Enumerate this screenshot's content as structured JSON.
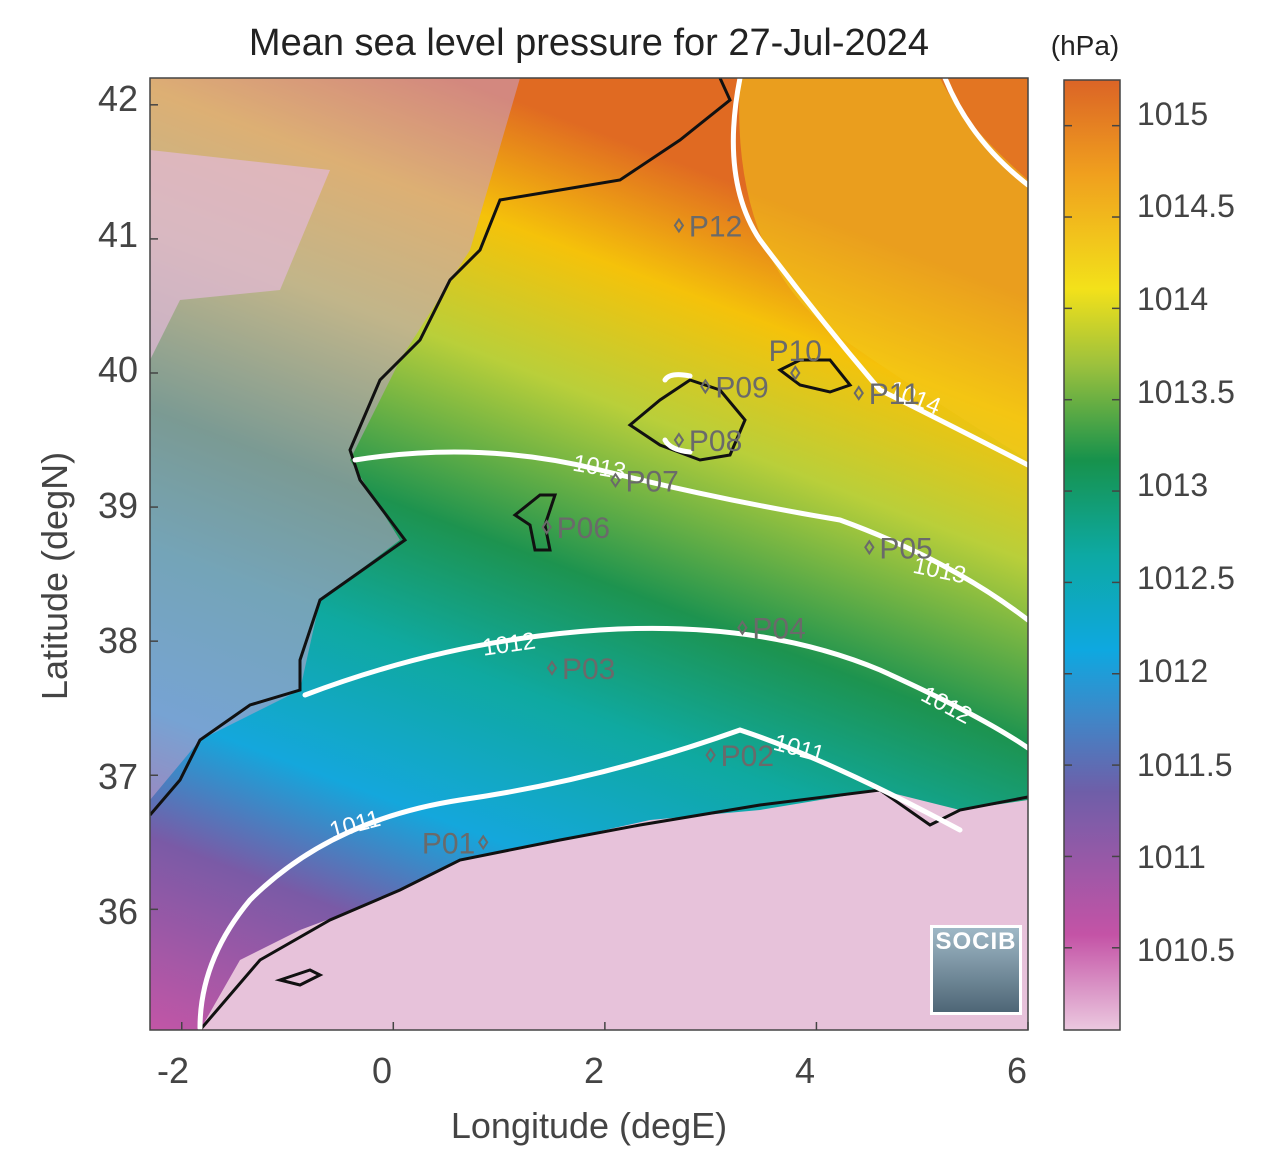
{
  "title": "Mean sea level pressure for 27-Jul-2024",
  "units": "(hPa)",
  "axes": {
    "xlabel": "Longitude (degE)",
    "ylabel": "Latitude (degN)",
    "xlim": [
      -2.3,
      6.0
    ],
    "ylim": [
      35.1,
      42.2
    ],
    "xticks": [
      "-2",
      "0",
      "2",
      "4",
      "6"
    ],
    "yticks": [
      "42",
      "41",
      "40",
      "39",
      "38",
      "37",
      "36"
    ]
  },
  "colorbar": {
    "range": [
      1010.05,
      1015.25
    ],
    "ticks": [
      "1015",
      "1014.5",
      "1014",
      "1013.5",
      "1013",
      "1012.5",
      "1012",
      "1011.5",
      "1011",
      "1010.5"
    ]
  },
  "contour_labels": [
    "1014",
    "1013",
    "1013",
    "1012",
    "1012",
    "1011",
    "1011"
  ],
  "points": [
    {
      "name": "P01",
      "lon": 0.85,
      "lat": 36.5
    },
    {
      "name": "P02",
      "lon": 3.0,
      "lat": 37.15
    },
    {
      "name": "P03",
      "lon": 1.5,
      "lat": 37.8
    },
    {
      "name": "P04",
      "lon": 3.3,
      "lat": 38.1
    },
    {
      "name": "P05",
      "lon": 4.5,
      "lat": 38.7
    },
    {
      "name": "P06",
      "lon": 1.45,
      "lat": 38.85
    },
    {
      "name": "P07",
      "lon": 2.1,
      "lat": 39.2
    },
    {
      "name": "P08",
      "lon": 2.7,
      "lat": 39.5
    },
    {
      "name": "P09",
      "lon": 2.95,
      "lat": 39.9
    },
    {
      "name": "P10",
      "lon": 3.8,
      "lat": 40.0
    },
    {
      "name": "P11",
      "lon": 4.4,
      "lat": 39.85
    },
    {
      "name": "P12",
      "lon": 2.7,
      "lat": 41.1
    }
  ],
  "logo_text": "SOCIB"
}
